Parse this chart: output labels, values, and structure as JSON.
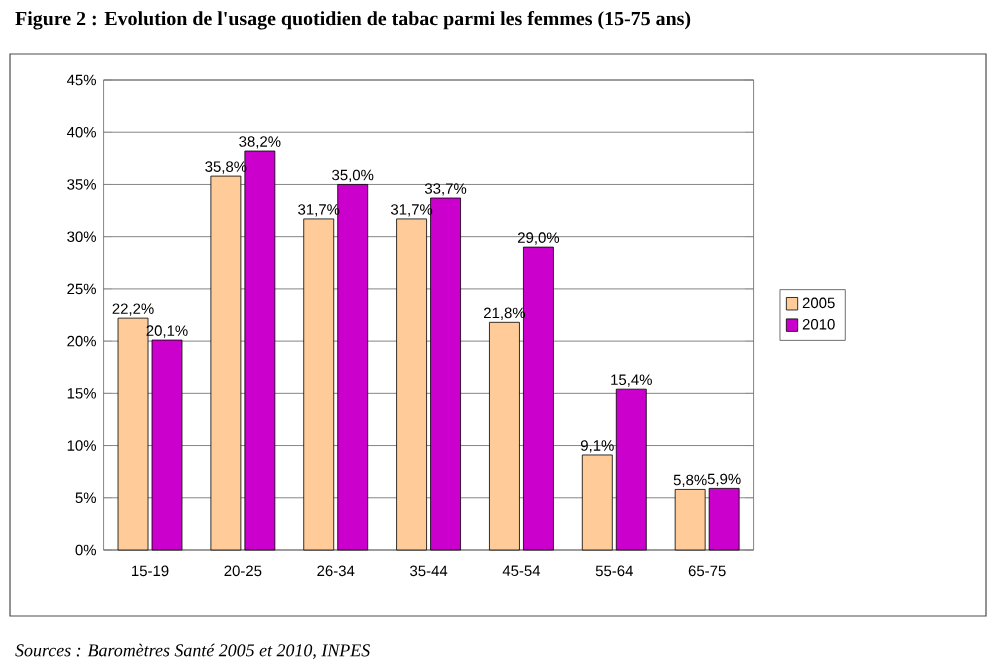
{
  "chart_data": {
    "type": "bar",
    "title": "Figure 2 : Evolution de l'usage quotidien de tabac parmi les femmes (15-75 ans)",
    "categories": [
      "15-19",
      "20-25",
      "26-34",
      "35-44",
      "45-54",
      "55-64",
      "65-75"
    ],
    "series": [
      {
        "name": "2005",
        "color": "#ffcc99",
        "values": [
          22.2,
          35.8,
          31.7,
          31.7,
          21.8,
          9.1,
          5.8
        ],
        "value_labels": [
          "22,2%",
          "35,8%",
          "31,7%",
          "31,7%",
          "21,8%",
          "9,1%",
          "5,8%"
        ]
      },
      {
        "name": "2010",
        "color": "#cc00cc",
        "values": [
          20.1,
          38.2,
          35.0,
          33.7,
          29.0,
          15.4,
          5.9
        ],
        "value_labels": [
          "20,1%",
          "38,2%",
          "35,0%",
          "33,7%",
          "29,0%",
          "15,4%",
          "5,9%"
        ]
      }
    ],
    "ylim": [
      0,
      45
    ],
    "yticks": [
      {
        "value": 0,
        "label": "0%"
      },
      {
        "value": 5,
        "label": "5%"
      },
      {
        "value": 10,
        "label": "10%"
      },
      {
        "value": 15,
        "label": "15%"
      },
      {
        "value": 20,
        "label": "20%"
      },
      {
        "value": 25,
        "label": "25%"
      },
      {
        "value": 30,
        "label": "30%"
      },
      {
        "value": 35,
        "label": "35%"
      },
      {
        "value": 40,
        "label": "40%"
      },
      {
        "value": 45,
        "label": "45%"
      }
    ],
    "grid": "y",
    "legend": "right",
    "annotations": [
      "Sources : Baromètres Santé 2005 et 2010, INPES"
    ]
  }
}
